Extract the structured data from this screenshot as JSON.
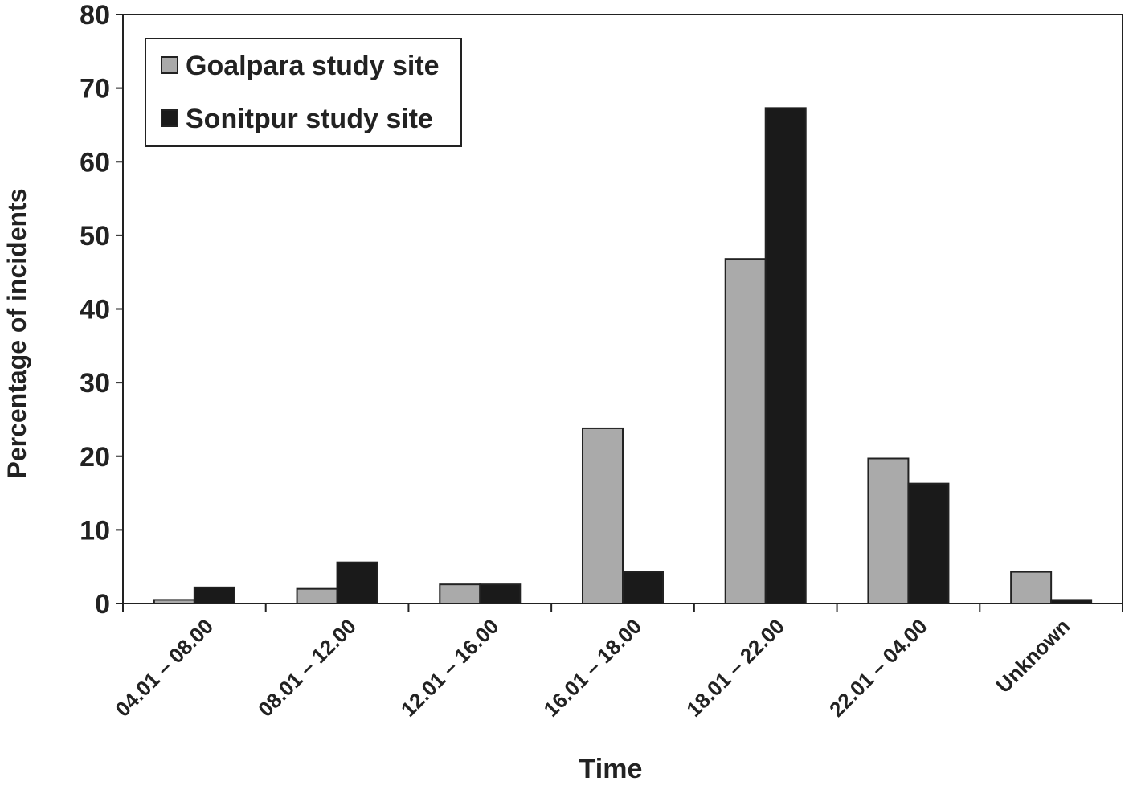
{
  "chart_data": {
    "type": "bar",
    "x_label": "Time",
    "y_label": "Percentage of incidents",
    "categories": [
      "04.01 – 08.00",
      "08.01 – 12.00",
      "12.01 – 16.00",
      "16.01 – 18.00",
      "18.01 – 22.00",
      "22.01 – 04.00",
      "Unknown"
    ],
    "series": [
      {
        "name": "Goalpara study site",
        "color": "#aaaaaa",
        "values": [
          0.5,
          2,
          2.6,
          23.8,
          46.8,
          19.7,
          4.3
        ]
      },
      {
        "name": "Sonitpur study site",
        "color": "#1a1a1a",
        "values": [
          2.2,
          5.6,
          2.6,
          4.3,
          67.3,
          16.3,
          0.5
        ]
      }
    ],
    "ylim": [
      0,
      80
    ],
    "yticks": [
      0,
      10,
      20,
      30,
      40,
      50,
      60,
      70,
      80
    ],
    "legend": "top-left"
  }
}
